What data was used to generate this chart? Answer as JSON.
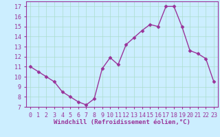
{
  "x": [
    0,
    1,
    2,
    3,
    4,
    5,
    6,
    7,
    8,
    9,
    10,
    11,
    12,
    13,
    14,
    15,
    16,
    17,
    18,
    19,
    20,
    21,
    22,
    23
  ],
  "y": [
    11.0,
    10.5,
    10.0,
    9.5,
    8.5,
    8.0,
    7.5,
    7.2,
    7.8,
    10.8,
    11.9,
    11.2,
    13.2,
    13.9,
    14.6,
    15.2,
    15.0,
    17.0,
    17.0,
    15.0,
    12.6,
    12.3,
    11.8,
    9.5
  ],
  "line_color": "#993399",
  "marker": "D",
  "marker_size": 2.5,
  "line_width": 1.0,
  "bg_color": "#cceeff",
  "grid_color": "#aaddcc",
  "xlabel": "Windchill (Refroidissement éolien,°C)",
  "xlabel_color": "#993399",
  "tick_color": "#993399",
  "xlabel_fontsize": 6.5,
  "tick_fontsize": 6.0,
  "ylim": [
    7,
    17.5
  ],
  "xlim": [
    -0.5,
    23.5
  ],
  "yticks": [
    7,
    8,
    9,
    10,
    11,
    12,
    13,
    14,
    15,
    16,
    17
  ],
  "xticks": [
    0,
    1,
    2,
    3,
    4,
    5,
    6,
    7,
    8,
    9,
    10,
    11,
    12,
    13,
    14,
    15,
    16,
    17,
    18,
    19,
    20,
    21,
    22,
    23
  ]
}
